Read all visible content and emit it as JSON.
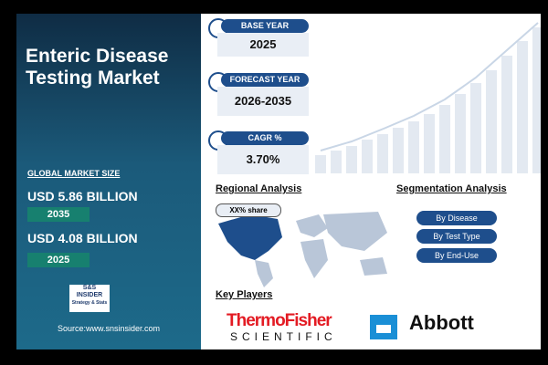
{
  "header": {
    "title": "Enteric Disease Testing Market"
  },
  "market_size": {
    "label": "GLOBAL MARKET SIZE",
    "items": [
      {
        "value": "USD 5.86 BILLION",
        "year": "2035"
      },
      {
        "value": "USD 4.08 BILLION",
        "year": "2025"
      }
    ]
  },
  "logo": {
    "line1": "S&S",
    "line2": "INSIDER",
    "line3": "Strategy & Stats"
  },
  "source": "Source:www.snsinsider.com",
  "stats": [
    {
      "label": "BASE YEAR",
      "value": "2025"
    },
    {
      "label": "FORECAST YEAR",
      "value": "2026-2035"
    },
    {
      "label": "CAGR %",
      "value": "3.70%"
    }
  ],
  "regional": {
    "title": "Regional Analysis",
    "share": "XX% share"
  },
  "segmentation": {
    "title": "Segmentation Analysis",
    "items": [
      "By Disease",
      "By Test Type",
      "By End-Use"
    ]
  },
  "key_players": {
    "title": "Key Players",
    "thermo": {
      "line1": "ThermoFisher",
      "line2": "SCIENTIFIC"
    },
    "abbott": "Abbott"
  }
}
